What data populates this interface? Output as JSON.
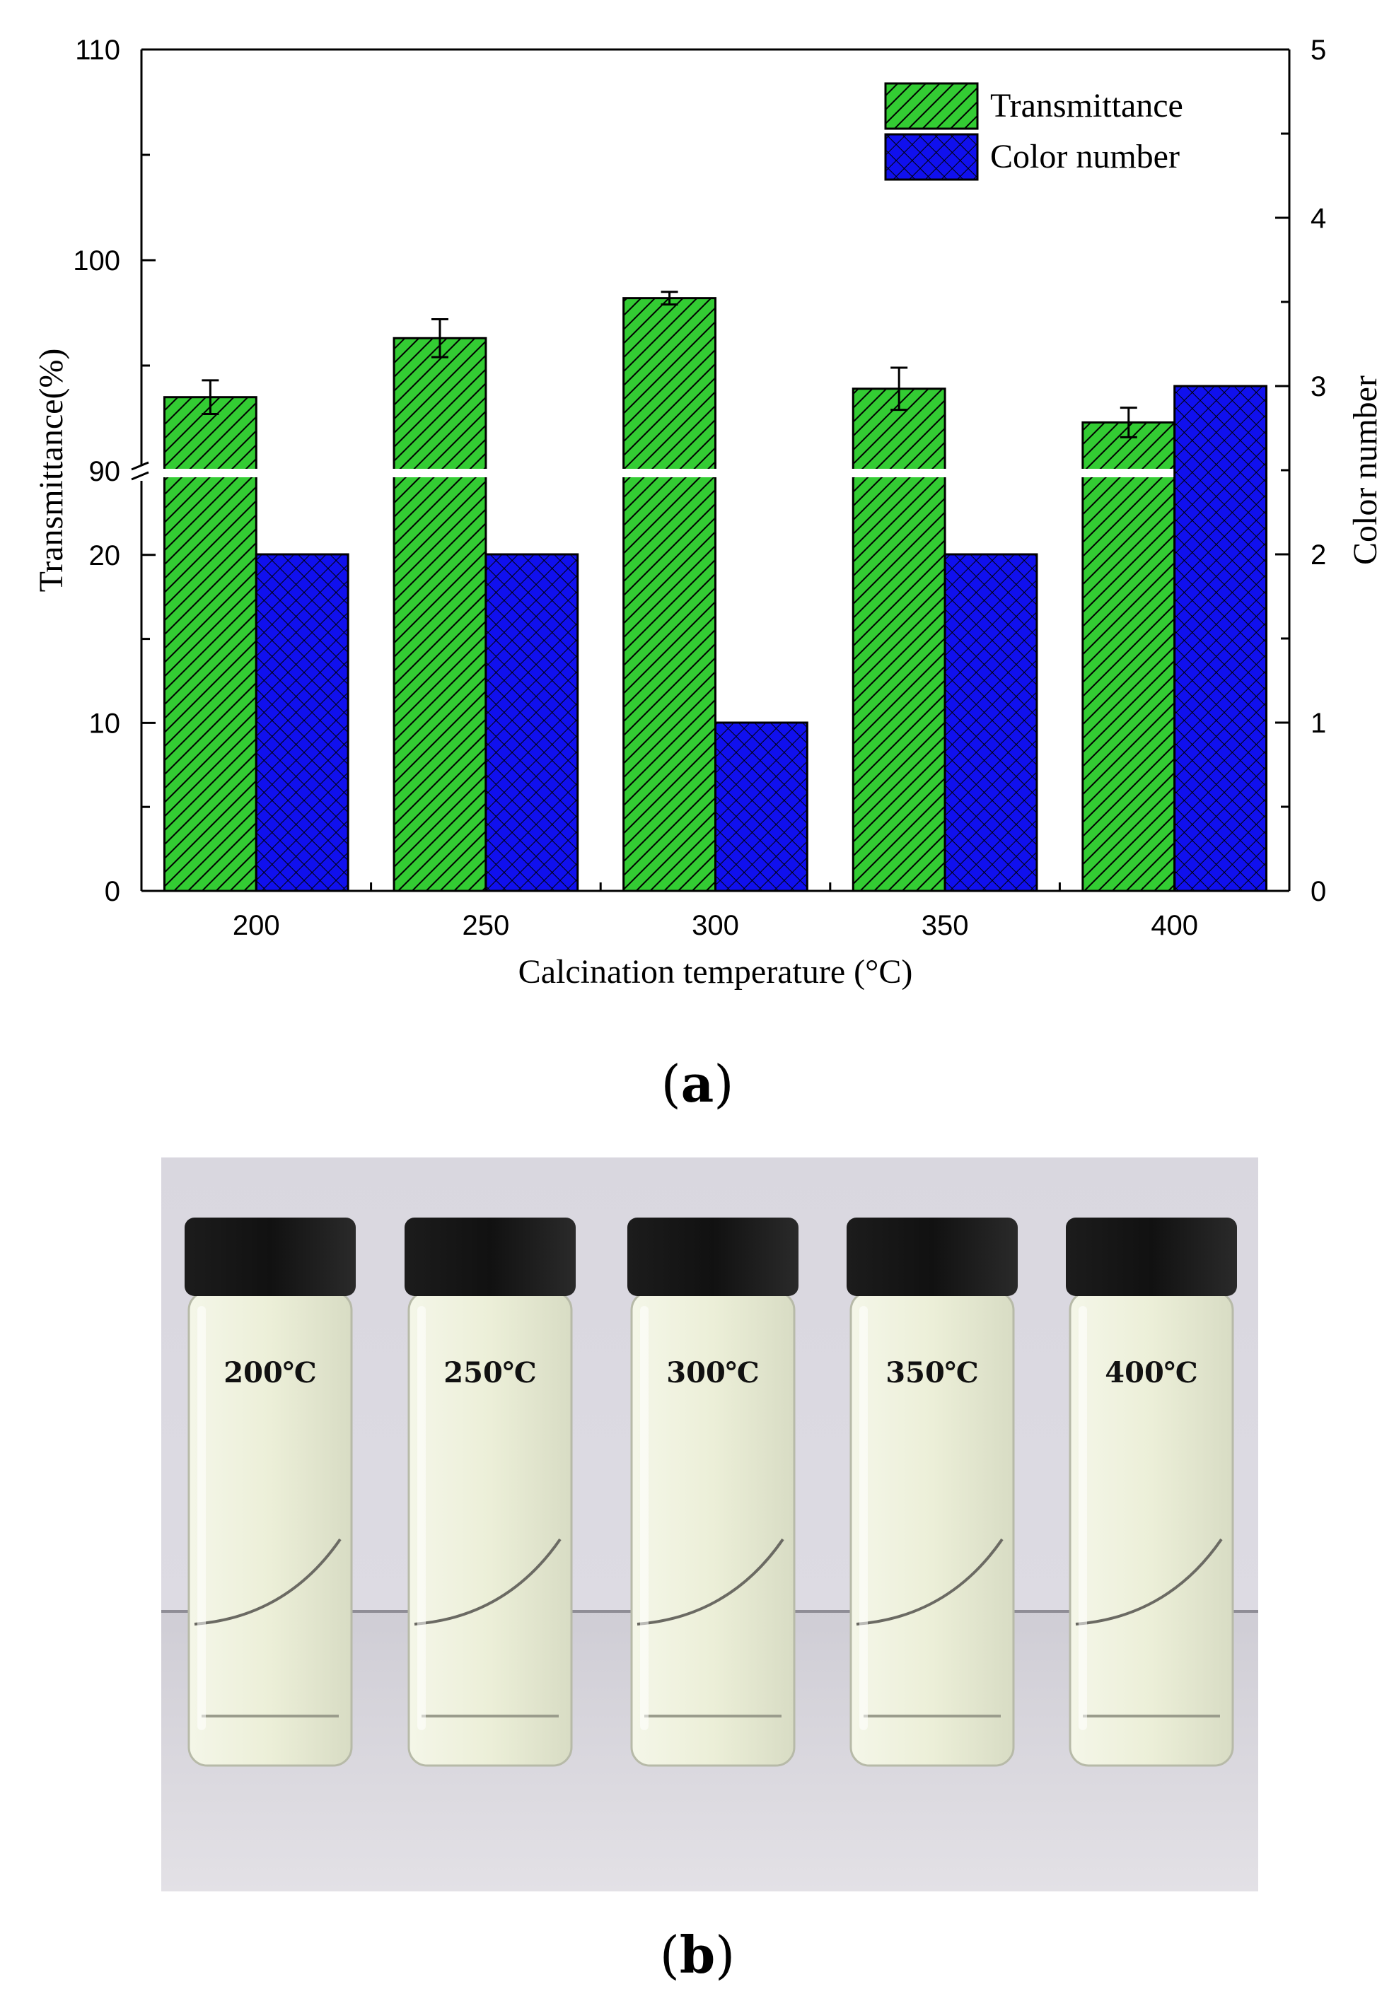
{
  "chart_data": {
    "type": "bar",
    "categories": [
      "200",
      "250",
      "300",
      "350",
      "400"
    ],
    "xlabel": "Calcination temperature (°C)",
    "ylabel_left": "Transmittance(%)",
    "ylabel_right": "Color number",
    "y_left_axis": {
      "broken": true,
      "lower_segment": [
        0,
        25
      ],
      "upper_segment": [
        90,
        110
      ],
      "ticks_lower": [
        "0",
        "10",
        "20"
      ],
      "ticks_upper": [
        "90",
        "100",
        "110"
      ]
    },
    "y_right_axis": {
      "range": [
        0,
        5
      ],
      "ticks": [
        "0",
        "1",
        "2",
        "3",
        "4",
        "5"
      ]
    },
    "series": [
      {
        "name": "Transmittance",
        "axis": "left",
        "color": "#33cc33",
        "pattern": "diagonal-hatch",
        "values": [
          93.5,
          96.3,
          98.2,
          93.9,
          92.3
        ],
        "errors": [
          0.8,
          0.9,
          0.3,
          1.0,
          0.7
        ]
      },
      {
        "name": "Color number",
        "axis": "right",
        "color": "#1010ee",
        "pattern": "cross-hatch",
        "values": [
          2,
          2,
          1,
          2,
          3
        ]
      }
    ],
    "legend_position": "top-right",
    "grid": false
  },
  "panel_labels": {
    "a_open": "(",
    "a_letter": "a",
    "a_close": ")",
    "b_open": "(",
    "b_letter": "b",
    "b_close": ")"
  },
  "photo": {
    "vial_labels": [
      "200℃",
      "250℃",
      "300℃",
      "350℃",
      "400℃"
    ],
    "colors": {
      "wall": "#dddbe3",
      "table": "#e3e1e6",
      "cap": "#111111",
      "liquid": "#ecefd8"
    }
  }
}
